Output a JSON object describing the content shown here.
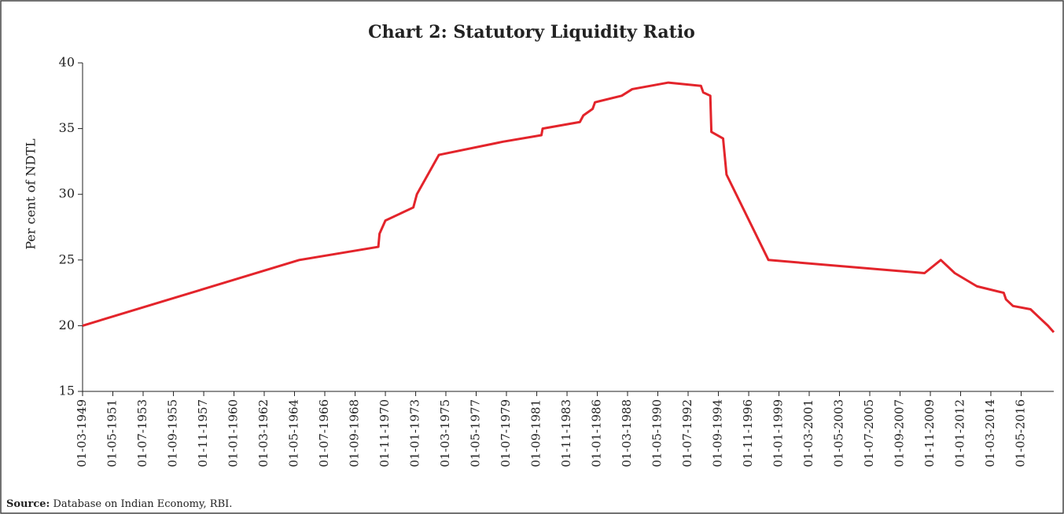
{
  "chart_data": {
    "type": "line",
    "title": "Chart 2: Statutory Liquidity Ratio",
    "y_label": "Per cent of NDTL",
    "source_label": "Source:",
    "source": "Database on Indian Economy, RBI.",
    "x": [
      "01-03-1949",
      "01-09-1964",
      "01-05-1970",
      "01-06-1970",
      "01-11-1970",
      "01-11-1972",
      "01-02-1973",
      "01-09-1974",
      "01-04-1979",
      "01-01-1982",
      "01-02-1982",
      "01-10-1984",
      "01-01-1985",
      "01-09-1985",
      "01-11-1985",
      "01-10-1987",
      "01-07-1988",
      "01-02-1991",
      "01-06-1993",
      "01-08-1993",
      "01-02-1994",
      "01-03-1994",
      "01-01-1995",
      "01-04-1995",
      "01-04-1998",
      "01-06-2009",
      "01-08-2010",
      "01-08-2011",
      "01-03-2013",
      "01-02-2015",
      "01-04-2015",
      "01-10-2015",
      "01-01-2017",
      "01-10-2017",
      "01-04-2018",
      "01-09-2018"
    ],
    "series": [
      {
        "name": "SLR",
        "color": "#e3242b",
        "values": [
          20,
          25,
          26,
          27,
          28,
          29,
          30,
          33,
          34,
          34.5,
          35,
          35.5,
          36,
          36.5,
          37,
          37.5,
          38,
          38.5,
          38.25,
          37.75,
          37.5,
          34.75,
          34.25,
          31.5,
          25,
          24,
          25,
          24,
          23,
          22.5,
          22,
          21.5,
          21.25,
          20.5,
          20,
          19.5
        ]
      }
    ],
    "xlim": [
      "01-03-1949",
      "01-09-2018"
    ],
    "xticks": [
      "01-03-1949",
      "01-05-1951",
      "01-07-1953",
      "01-09-1955",
      "01-11-1957",
      "01-01-1960",
      "01-03-1962",
      "01-05-1964",
      "01-07-1966",
      "01-09-1968",
      "01-11-1970",
      "01-01-1973",
      "01-03-1975",
      "01-05-1977",
      "01-07-1979",
      "01-09-1981",
      "01-11-1983",
      "01-01-1986",
      "01-03-1988",
      "01-05-1990",
      "01-07-1992",
      "01-09-1994",
      "01-11-1996",
      "01-01-1999",
      "01-03-2001",
      "01-05-2003",
      "01-07-2005",
      "01-09-2007",
      "01-11-2009",
      "01-01-2012",
      "01-03-2014",
      "01-05-2016"
    ],
    "ylim": [
      15,
      40
    ],
    "yticks": [
      15,
      20,
      25,
      30,
      35,
      40
    ],
    "grid": false
  }
}
